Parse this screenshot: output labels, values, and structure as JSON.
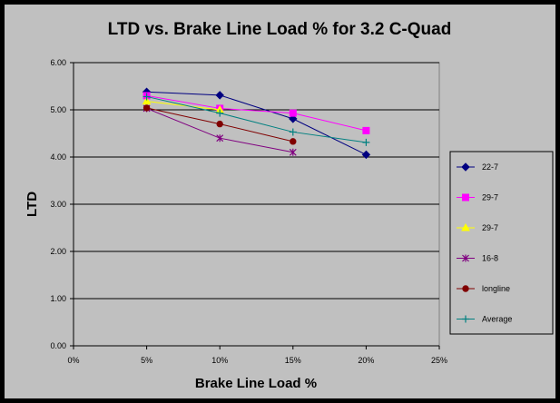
{
  "chart_data": {
    "type": "line",
    "title": "LTD vs. Brake Line Load % for 3.2 C-Quad",
    "xlabel": "Brake Line Load %",
    "ylabel": "LTD",
    "x_ticks": [
      "0%",
      "5%",
      "10%",
      "15%",
      "20%",
      "25%"
    ],
    "y_ticks": [
      "0.00",
      "1.00",
      "2.00",
      "3.00",
      "4.00",
      "5.00",
      "6.00"
    ],
    "xlim": [
      0,
      25
    ],
    "ylim": [
      0,
      6
    ],
    "grid": "horizontal",
    "legend_position": "right",
    "series": [
      {
        "name": "22-7",
        "color": "#000080",
        "marker": "diamond",
        "x": [
          5,
          10,
          15,
          20
        ],
        "y": [
          5.38,
          5.31,
          4.81,
          4.05
        ]
      },
      {
        "name": "29-7",
        "color": "#FF00FF",
        "marker": "square",
        "x": [
          5,
          10,
          15,
          20
        ],
        "y": [
          5.3,
          5.03,
          4.93,
          4.56
        ]
      },
      {
        "name": "29-7",
        "color": "#FFFF00",
        "marker": "triangle",
        "x": [
          5,
          10
        ],
        "y": [
          5.18,
          5.0
        ]
      },
      {
        "name": "16-8",
        "color": "#800080",
        "marker": "star",
        "x": [
          5,
          10,
          15
        ],
        "y": [
          5.03,
          4.4,
          4.1
        ]
      },
      {
        "name": "longline",
        "color": "#800000",
        "marker": "circle",
        "x": [
          5,
          10,
          15
        ],
        "y": [
          5.04,
          4.7,
          4.33
        ]
      },
      {
        "name": "Average",
        "color": "#008080",
        "marker": "plus",
        "x": [
          5,
          10,
          15,
          20
        ],
        "y": [
          5.28,
          4.93,
          4.53,
          4.31
        ]
      }
    ]
  }
}
